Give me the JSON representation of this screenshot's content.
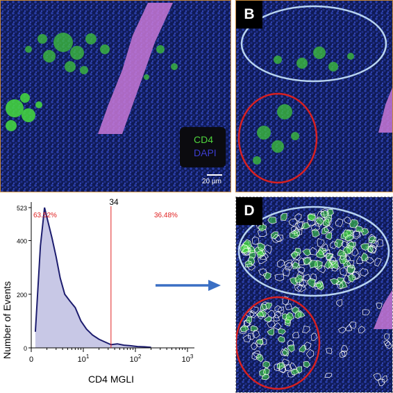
{
  "panels": {
    "b_label": "B",
    "d_label": "D"
  },
  "legend": {
    "cd4": "CD4",
    "dapi": "DAPI",
    "cd4_color": "#4fd43e",
    "dapi_color": "#3d3dd0"
  },
  "scale_bar": "20 µm",
  "histogram": {
    "threshold_label": "34",
    "left_pct": "63.52%",
    "right_pct": "36.48%",
    "xlabel": "CD4 MGLI",
    "ylabel": "Number of Events",
    "y_ticks": [
      "523",
      "400",
      "200",
      "0"
    ],
    "x_ticks": [
      {
        "base": "0",
        "exp": ""
      },
      {
        "base": "10",
        "exp": "1"
      },
      {
        "base": "10",
        "exp": "2"
      },
      {
        "base": "10",
        "exp": "3"
      }
    ]
  },
  "chart_data": {
    "type": "area",
    "x_scale": "log",
    "xlim": [
      1,
      1000
    ],
    "ylim": [
      0,
      523
    ],
    "threshold": 34,
    "x": [
      1.2,
      1.5,
      1.8,
      2.1,
      2.5,
      3,
      3.6,
      4.4,
      5.5,
      7,
      9,
      11.5,
      15,
      20,
      26,
      34,
      45,
      60,
      80,
      110,
      150,
      200
    ],
    "y": [
      60,
      380,
      523,
      470,
      410,
      340,
      260,
      200,
      175,
      150,
      100,
      70,
      48,
      32,
      22,
      12,
      15,
      10,
      8,
      5,
      4,
      2
    ],
    "fill_color": "#c8c8e6",
    "line_color": "#1c1c6e",
    "threshold_color": "#e02020",
    "grid": false
  },
  "colors": {
    "tissue_bg": "#101a55",
    "vessel": "#c878d6",
    "ellipse_top": "#b8d4f0",
    "ellipse_bottom": "#d82020",
    "arrow": "#3a6fc4"
  }
}
